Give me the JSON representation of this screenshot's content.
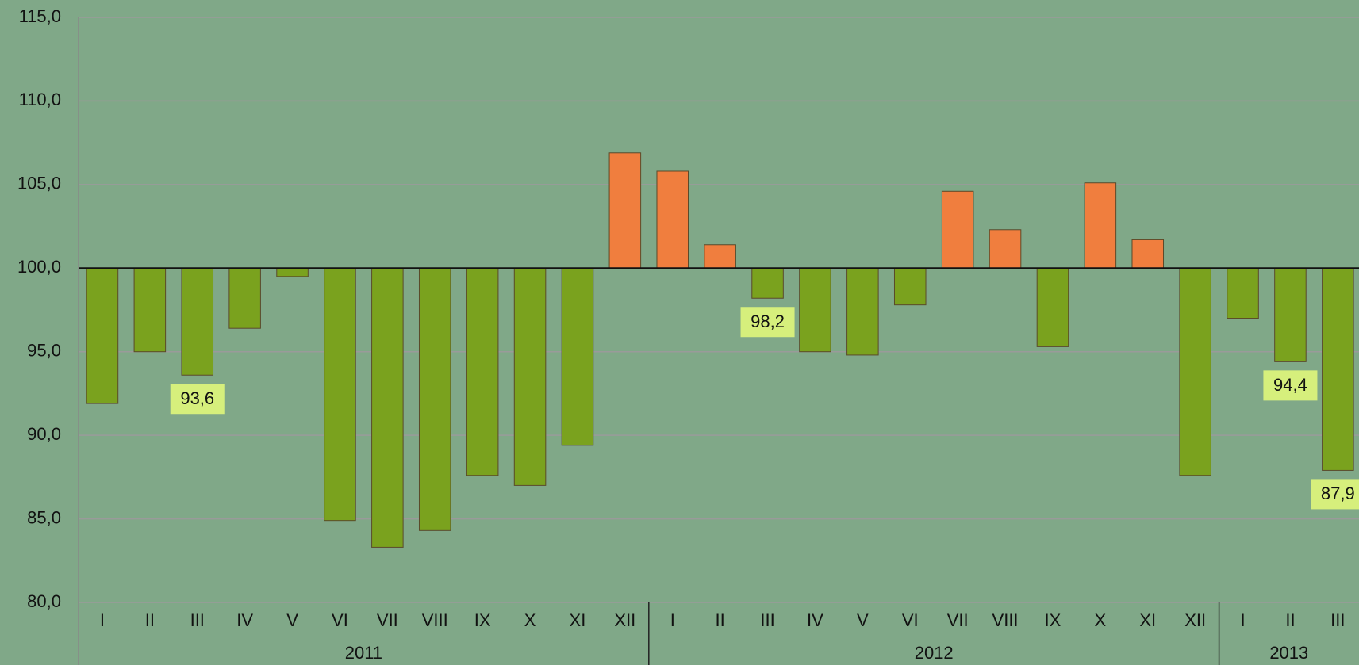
{
  "chart_data": {
    "type": "bar",
    "baseline": 100,
    "colors": {
      "below": "#7aa21e",
      "above": "#f07e3e"
    },
    "ylim": [
      80,
      115
    ],
    "yticks": [
      {
        "value": 80,
        "label": "80,0"
      },
      {
        "value": 85,
        "label": "85,0"
      },
      {
        "value": 90,
        "label": "90,0"
      },
      {
        "value": 95,
        "label": "95,0"
      },
      {
        "value": 100,
        "label": "100,0"
      },
      {
        "value": 105,
        "label": "105,0"
      },
      {
        "value": 110,
        "label": "110,0"
      },
      {
        "value": 115,
        "label": "115,0"
      }
    ],
    "grid": true,
    "groups": [
      {
        "name": "2011",
        "categories": [
          "I",
          "II",
          "III",
          "IV",
          "V",
          "VI",
          "VII",
          "VIII",
          "IX",
          "X",
          "XI",
          "XII"
        ],
        "values": [
          91.9,
          95.0,
          93.6,
          96.4,
          99.5,
          84.9,
          83.3,
          84.3,
          87.6,
          87.0,
          89.4,
          106.9
        ],
        "value_labels": [
          null,
          null,
          "93,6",
          null,
          null,
          null,
          null,
          null,
          null,
          null,
          null,
          null
        ]
      },
      {
        "name": "2012",
        "categories": [
          "I",
          "II",
          "III",
          "IV",
          "V",
          "VI",
          "VII",
          "VIII",
          "IX",
          "X",
          "XI",
          "XII"
        ],
        "values": [
          105.8,
          101.4,
          98.2,
          95.0,
          94.8,
          97.8,
          104.6,
          102.3,
          95.3,
          105.1,
          101.7,
          87.6
        ],
        "value_labels": [
          null,
          null,
          "98,2",
          null,
          null,
          null,
          null,
          null,
          null,
          null,
          null,
          null
        ]
      },
      {
        "name": "2013",
        "categories": [
          "I",
          "II",
          "III"
        ],
        "values": [
          97.0,
          94.4,
          87.9
        ],
        "value_labels": [
          null,
          "94,4",
          "87,9"
        ]
      }
    ]
  }
}
